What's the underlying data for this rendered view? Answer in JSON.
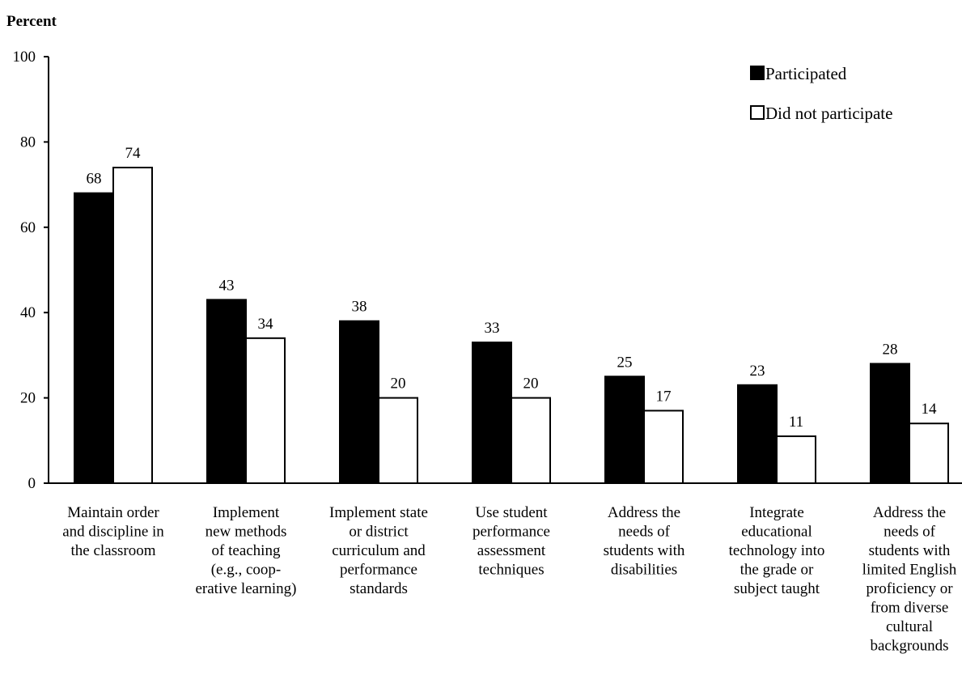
{
  "chart_data": {
    "type": "bar",
    "title": "",
    "ylabel": "Percent",
    "xlabel": "",
    "ylim": [
      0,
      100
    ],
    "yticks": [
      0,
      20,
      40,
      60,
      80,
      100
    ],
    "grid": false,
    "legend_position": "top-right",
    "categories": [
      [
        "Maintain order",
        "and discipline in",
        "the classroom"
      ],
      [
        "Implement",
        "new methods",
        "of teaching",
        "(e.g., coop-",
        "erative learning)"
      ],
      [
        "Implement state",
        "or district",
        "curriculum and",
        "performance",
        "standards"
      ],
      [
        "Use student",
        "performance",
        "assessment",
        "techniques"
      ],
      [
        "Address the",
        "needs of",
        "students with",
        "disabilities"
      ],
      [
        "Integrate",
        "educational",
        "technology into",
        "the grade or",
        "subject taught"
      ],
      [
        "Address the",
        "needs of",
        "students with",
        "limited English",
        "proficiency or",
        "from diverse",
        "cultural",
        "backgrounds"
      ]
    ],
    "series": [
      {
        "name": "Participated",
        "color": "#000000",
        "values": [
          68,
          43,
          38,
          33,
          25,
          23,
          28
        ]
      },
      {
        "name": "Did not participate",
        "color": "#ffffff",
        "values": [
          74,
          34,
          20,
          20,
          17,
          11,
          14
        ]
      }
    ]
  }
}
